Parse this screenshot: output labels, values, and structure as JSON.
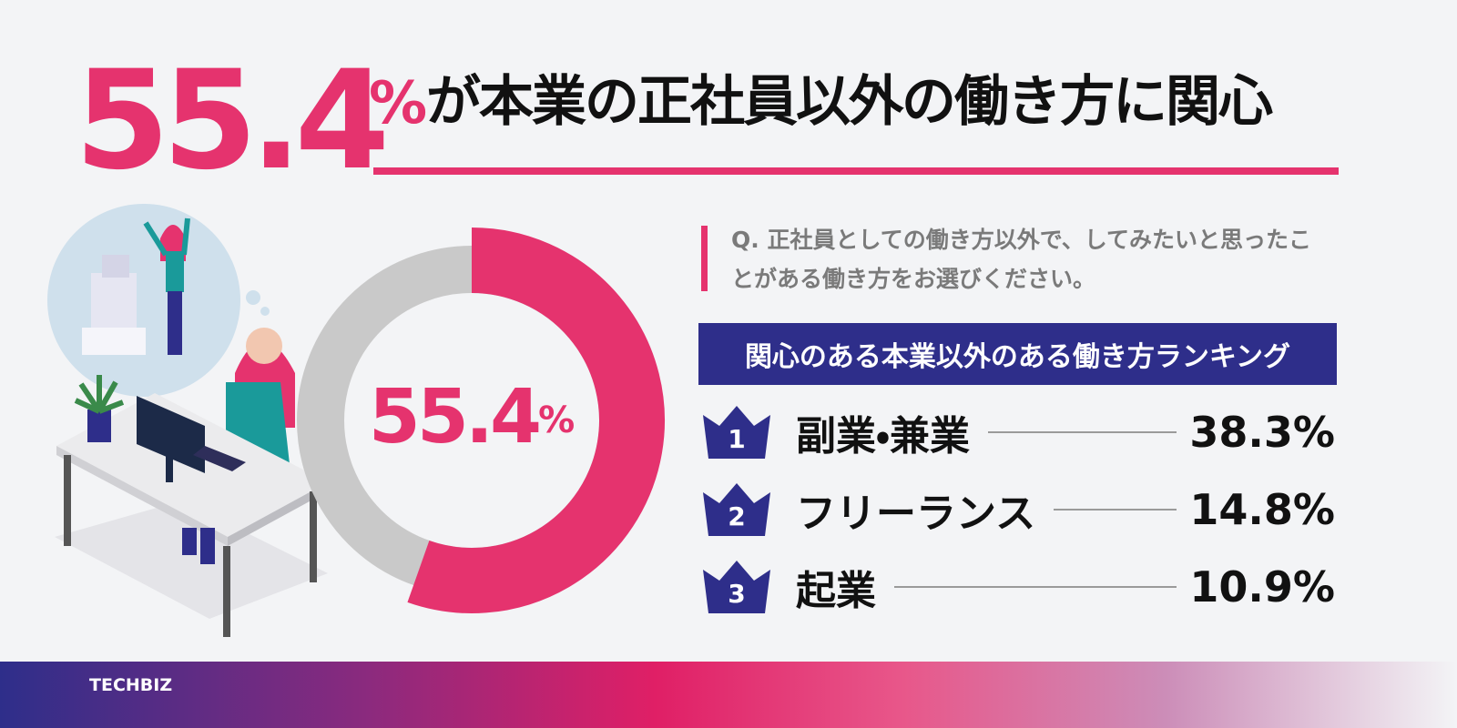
{
  "headline": {
    "value": 55.4,
    "unit": "%",
    "text": "が本業の正社員以外の働き方に関心"
  },
  "question": {
    "prefix": "Q.",
    "text": "正社員としての働き方以外で、してみたいと思ったことがある働き方をお選びください。"
  },
  "chart_data": {
    "type": "donut",
    "values": [
      55.4
    ],
    "unit": "%",
    "ylim": [
      0,
      100
    ],
    "color": "#e5336e",
    "track_color": "#c9c9c9"
  },
  "ranking": {
    "title": "関心のある本業以外のある働き方ランキング",
    "items": [
      {
        "rank": "1",
        "label": "副業・兼業",
        "value": "38.3%"
      },
      {
        "rank": "2",
        "label": "フリーランス",
        "value": "14.8%"
      },
      {
        "rank": "3",
        "label": "起業",
        "value": "10.9%"
      }
    ]
  },
  "footer": {
    "brand": "TECHBIZ"
  }
}
